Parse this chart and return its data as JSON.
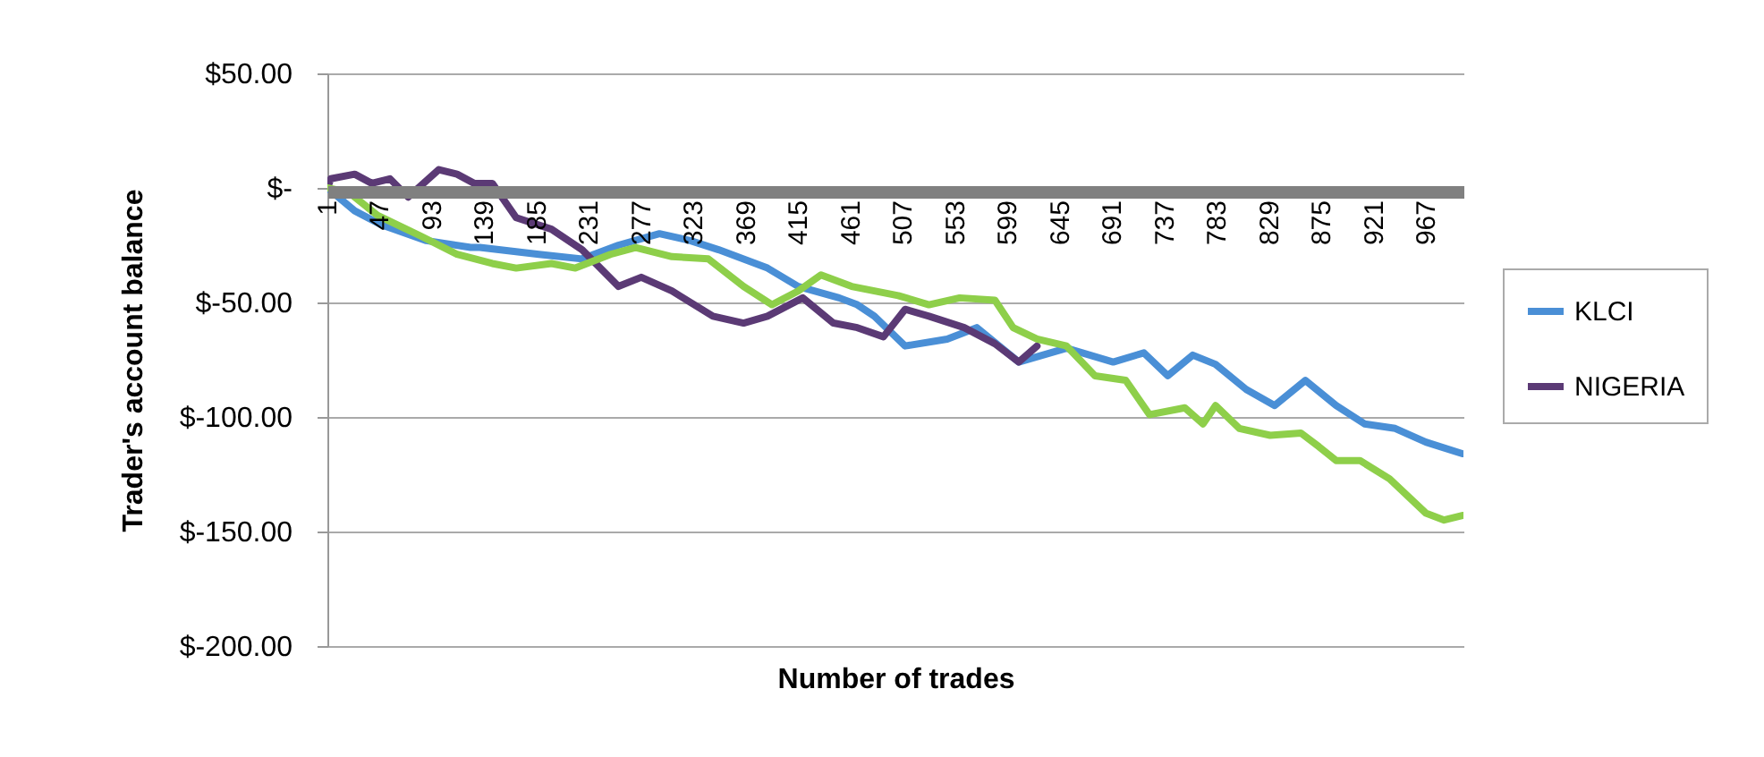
{
  "chart_data": {
    "type": "line",
    "xlabel": "Number of trades",
    "ylabel": "Trader's account balance",
    "xlim": [
      1,
      1000
    ],
    "xticks": [
      1,
      47,
      93,
      139,
      185,
      231,
      277,
      323,
      369,
      415,
      461,
      507,
      553,
      599,
      645,
      691,
      737,
      783,
      829,
      875,
      921,
      967
    ],
    "ylim": [
      -200,
      50
    ],
    "yticks": [
      {
        "value": 50,
        "label": "$50.00"
      },
      {
        "value": 0,
        "label": "$-"
      },
      {
        "value": -50,
        "label": "$-50.00"
      },
      {
        "value": -100,
        "label": "$-100.00"
      },
      {
        "value": -150,
        "label": "$-150.00"
      },
      {
        "value": -200,
        "label": "$-200.00"
      }
    ],
    "grid": "y",
    "legend": "right",
    "marker": "none",
    "line_style": "solid",
    "series": [
      {
        "name": "KLCI",
        "color": "#4a8fd6",
        "x": [
          1,
          25,
          48,
          88,
          127,
          135,
          187,
          225,
          257,
          293,
          320,
          345,
          388,
          415,
          451,
          467,
          482,
          509,
          546,
          572,
          609,
          651,
          692,
          719,
          740,
          762,
          782,
          809,
          834,
          861,
          888,
          913,
          940,
          967,
          999
        ],
        "values": [
          0,
          -10,
          -16,
          -23,
          -26,
          -26,
          -29,
          -31,
          -25,
          -20,
          -23,
          -27,
          -35,
          -43,
          -48,
          -51,
          -56,
          -69,
          -66,
          -61,
          -76,
          -70,
          -76,
          -72,
          -82,
          -73,
          -77,
          -88,
          -95,
          -84,
          -95,
          -103,
          -105,
          -111,
          -116
        ]
      },
      {
        "name": "NIGERIA",
        "color": "#5b3a75",
        "x": [
          1,
          4,
          25,
          40,
          56,
          72,
          99,
          115,
          130,
          146,
          167,
          198,
          225,
          257,
          277,
          304,
          340,
          367,
          388,
          419,
          446,
          467,
          490,
          509,
          530,
          561,
          588,
          609,
          625
        ],
        "values": [
          0,
          4,
          6,
          2,
          4,
          -4,
          8,
          6,
          2,
          2,
          -13,
          -18,
          -27,
          -43,
          -39,
          -45,
          -56,
          -59,
          -56,
          -48,
          -59,
          -61,
          -65,
          -53,
          -56,
          -61,
          -68,
          -76,
          -69
        ]
      },
      {
        "color": "#8ecf4a",
        "x": [
          1,
          20,
          45,
          83,
          115,
          146,
          167,
          198,
          219,
          250,
          272,
          304,
          336,
          367,
          392,
          415,
          435,
          462,
          503,
          530,
          557,
          588,
          604,
          625,
          651,
          676,
          703,
          724,
          755,
          771,
          782,
          803,
          830,
          857,
          873,
          888,
          909,
          935,
          967,
          983,
          999
        ],
        "values": [
          0,
          -2,
          -12,
          -21,
          -29,
          -33,
          -35,
          -33,
          -35,
          -29,
          -26,
          -30,
          -31,
          -43,
          -51,
          -45,
          -38,
          -43,
          -47,
          -51,
          -48,
          -49,
          -61,
          -66,
          -69,
          -82,
          -84,
          -99,
          -96,
          -103,
          -95,
          -105,
          -108,
          -107,
          -113,
          -119,
          -119,
          -127,
          -142,
          -145,
          -143
        ]
      }
    ]
  }
}
